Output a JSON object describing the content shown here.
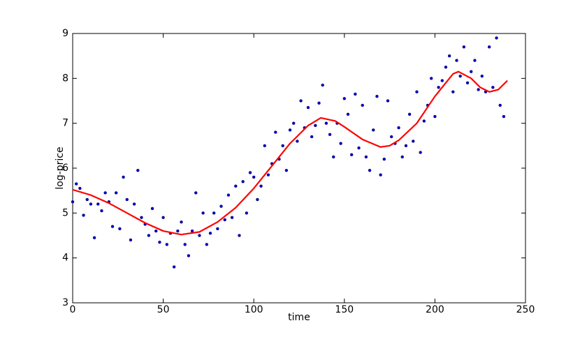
{
  "chart_data": {
    "type": "scatter",
    "x_label": "time",
    "y_label": "log-price",
    "xlim": [
      0,
      250
    ],
    "ylim": [
      3,
      9
    ],
    "xticks": [
      0,
      50,
      100,
      150,
      200,
      250
    ],
    "yticks": [
      3,
      4,
      5,
      6,
      7,
      8,
      9
    ],
    "grid": false,
    "series": [
      {
        "type": "scatter",
        "color": "#0000cc",
        "x": [
          0,
          2,
          4,
          6,
          8,
          10,
          12,
          14,
          16,
          18,
          20,
          22,
          24,
          26,
          28,
          30,
          32,
          34,
          36,
          38,
          40,
          42,
          44,
          46,
          48,
          50,
          52,
          54,
          56,
          58,
          60,
          62,
          64,
          66,
          68,
          70,
          72,
          74,
          76,
          78,
          80,
          82,
          84,
          86,
          88,
          90,
          92,
          94,
          96,
          98,
          100,
          102,
          104,
          106,
          108,
          110,
          112,
          114,
          116,
          118,
          120,
          122,
          124,
          126,
          128,
          130,
          132,
          134,
          136,
          138,
          140,
          142,
          144,
          146,
          148,
          150,
          152,
          154,
          156,
          158,
          160,
          162,
          164,
          166,
          168,
          170,
          172,
          174,
          176,
          178,
          180,
          182,
          184,
          186,
          188,
          190,
          192,
          194,
          196,
          198,
          200,
          202,
          204,
          206,
          208,
          210,
          212,
          214,
          216,
          218,
          220,
          222,
          224,
          226,
          228,
          230,
          232,
          234,
          236,
          238
        ],
        "values": [
          5.25,
          5.65,
          5.55,
          4.95,
          5.3,
          5.2,
          4.45,
          5.2,
          5.05,
          5.45,
          5.25,
          4.7,
          5.45,
          4.65,
          5.8,
          5.3,
          4.4,
          5.2,
          5.95,
          4.9,
          4.75,
          4.5,
          5.1,
          4.6,
          4.35,
          4.9,
          4.3,
          4.55,
          3.8,
          4.6,
          4.8,
          4.3,
          4.05,
          4.6,
          5.45,
          4.5,
          5.0,
          4.3,
          4.55,
          5.0,
          4.65,
          5.15,
          4.85,
          5.4,
          4.9,
          5.6,
          4.5,
          5.7,
          5.0,
          5.9,
          5.8,
          5.3,
          5.6,
          6.5,
          5.85,
          6.1,
          6.8,
          6.2,
          6.5,
          5.95,
          6.85,
          7.0,
          6.6,
          7.5,
          6.9,
          7.35,
          6.7,
          6.95,
          7.45,
          7.85,
          7.0,
          6.75,
          6.25,
          7.0,
          6.55,
          7.55,
          7.2,
          6.3,
          7.65,
          6.45,
          7.4,
          6.25,
          5.95,
          6.85,
          7.6,
          5.85,
          6.2,
          7.5,
          6.7,
          6.55,
          6.9,
          6.25,
          6.5,
          7.2,
          6.6,
          7.7,
          6.35,
          7.05,
          7.4,
          8.0,
          7.15,
          7.8,
          7.95,
          8.25,
          8.5,
          7.7,
          8.4,
          8.05,
          8.7,
          7.9,
          8.15,
          8.4,
          7.75,
          8.05,
          7.7,
          8.7,
          7.8,
          8.9,
          7.4,
          7.15
        ]
      },
      {
        "type": "line",
        "color": "#ff0000",
        "x": [
          0,
          10,
          20,
          30,
          40,
          50,
          60,
          70,
          80,
          90,
          100,
          110,
          120,
          130,
          137,
          145,
          150,
          160,
          170,
          175,
          180,
          190,
          200,
          210,
          213,
          220,
          225,
          230,
          235,
          240
        ],
        "values": [
          5.52,
          5.4,
          5.22,
          5.0,
          4.78,
          4.6,
          4.52,
          4.58,
          4.8,
          5.12,
          5.55,
          6.05,
          6.55,
          6.95,
          7.12,
          7.05,
          6.92,
          6.64,
          6.47,
          6.5,
          6.62,
          7.0,
          7.6,
          8.1,
          8.15,
          8.0,
          7.8,
          7.7,
          7.75,
          7.95
        ]
      }
    ]
  }
}
